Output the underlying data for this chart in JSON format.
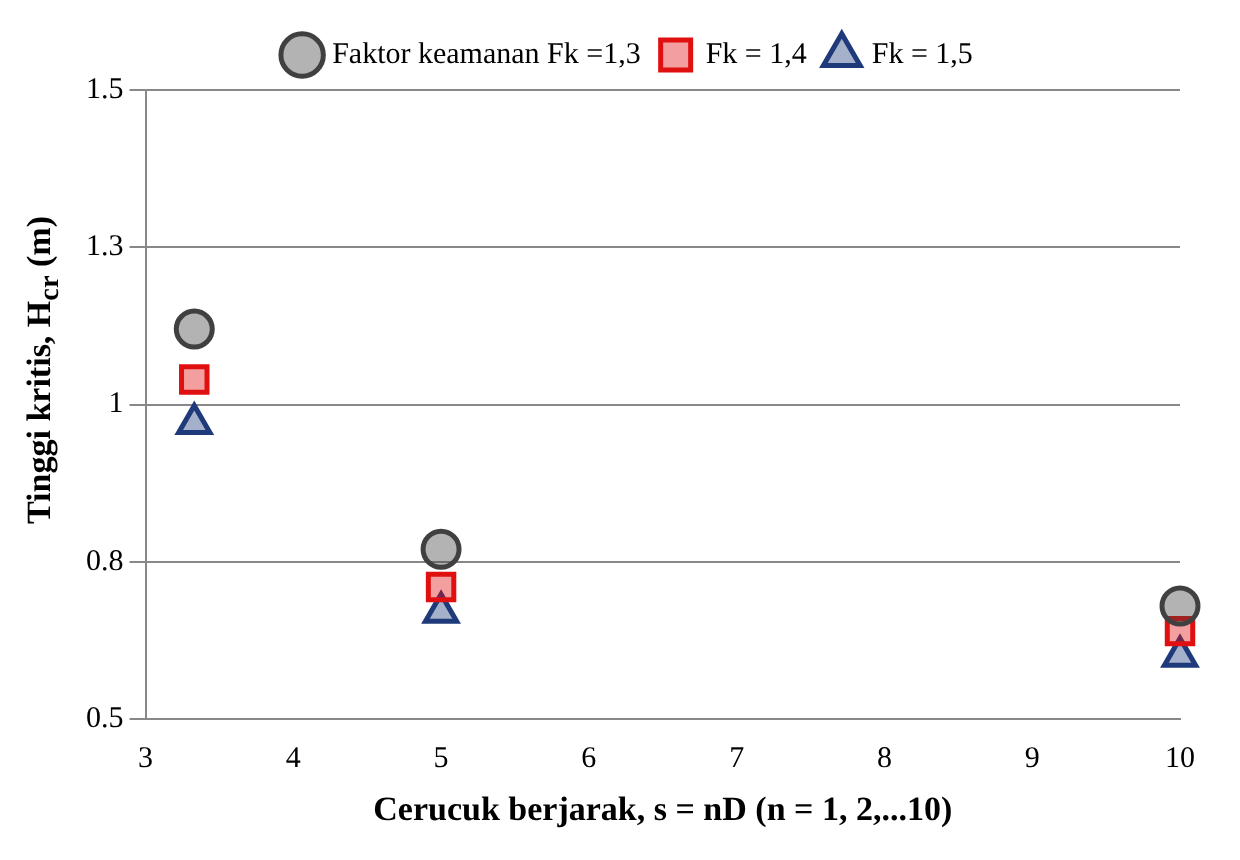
{
  "chart_data": {
    "type": "scatter",
    "xlabel": "Cerucuk berjarak, s = nD (n = 1, 2,...10)",
    "ylabel": "Tinggi kritis, H$_{cr}$ (m)",
    "xlim": [
      3,
      10
    ],
    "xticks": [
      3,
      4,
      5,
      6,
      7,
      8,
      9,
      10
    ],
    "ylim": [
      0.5,
      1.5
    ],
    "yticks": [
      0.5,
      {
        "value": 0.75,
        "label": "0.8"
      },
      1.0,
      {
        "value": 1.25,
        "label": "1.3"
      },
      1.5
    ],
    "grid": "y",
    "legend": "top",
    "series": [
      {
        "name": "Faktor keamanan Fk =1,3",
        "color": "#404040",
        "marker": "circle",
        "x": [
          3.33,
          5,
          10
        ],
        "values": [
          1.12,
          0.77,
          0.68
        ]
      },
      {
        "name": "Fk = 1,4",
        "color": "#e01010",
        "marker": "square",
        "x": [
          3.33,
          5,
          10
        ],
        "values": [
          1.04,
          0.71,
          0.64
        ]
      },
      {
        "name": "Fk = 1,5",
        "color": "#1f3a7a",
        "marker": "triangle",
        "x": [
          3.33,
          5,
          10
        ],
        "values": [
          0.97,
          0.67,
          0.6
        ]
      }
    ]
  }
}
